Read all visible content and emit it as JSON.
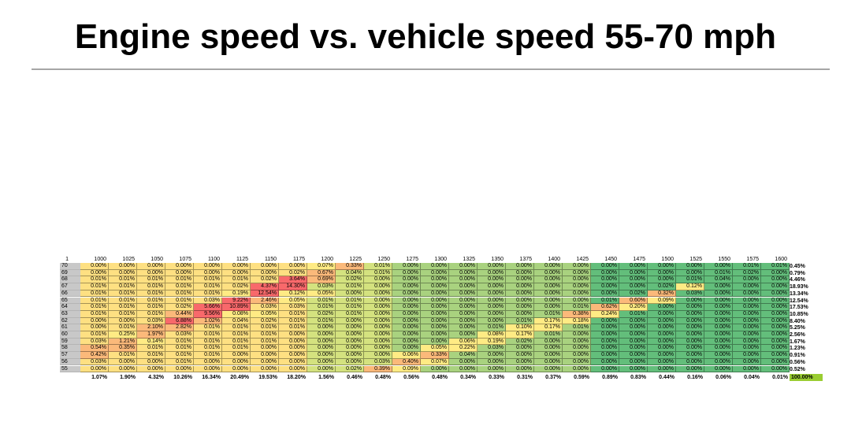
{
  "title": "Engine speed vs. vehicle speed 55-70 mph",
  "colors": {
    "hot": "#f8696b",
    "warm": "#fee082",
    "pale": "#ffeb84",
    "mid": "#d4e27f",
    "cool": "#a9d27f",
    "cold": "#63be7b",
    "header_bg": "#c8c8c8",
    "grand_total_bg": "#9acd32"
  },
  "table": {
    "corner": "1",
    "columns": [
      "1000",
      "1025",
      "1050",
      "1075",
      "1100",
      "1125",
      "1150",
      "1175",
      "1200",
      "1225",
      "1250",
      "1275",
      "1300",
      "1325",
      "1350",
      "1375",
      "1400",
      "1425",
      "1450",
      "1475",
      "1500",
      "1525",
      "1550",
      "1575",
      "1600"
    ],
    "rows": [
      {
        "speed": "70",
        "cells": [
          "0.00%",
          "0.00%",
          "0.00%",
          "0.00%",
          "0.00%",
          "0.00%",
          "0.00%",
          "0.00%",
          "0.07%",
          "0.33%",
          "0.01%",
          "0.00%",
          "0.00%",
          "0.00%",
          "0.00%",
          "0.00%",
          "0.00%",
          "0.00%",
          "0.00%",
          "0.00%",
          "0.00%",
          "0.00%",
          "0.00%",
          "0.01%",
          "0.01%"
        ],
        "total": "0.45%"
      },
      {
        "speed": "69",
        "cells": [
          "0.00%",
          "0.00%",
          "0.00%",
          "0.00%",
          "0.00%",
          "0.00%",
          "0.00%",
          "0.02%",
          "0.67%",
          "0.04%",
          "0.01%",
          "0.00%",
          "0.00%",
          "0.00%",
          "0.00%",
          "0.00%",
          "0.00%",
          "0.00%",
          "0.00%",
          "0.00%",
          "0.00%",
          "0.00%",
          "0.01%",
          "0.02%",
          "0.00%"
        ],
        "total": "0.79%"
      },
      {
        "speed": "68",
        "cells": [
          "0.01%",
          "0.01%",
          "0.01%",
          "0.01%",
          "0.01%",
          "0.01%",
          "0.02%",
          "3.64%",
          "0.69%",
          "0.02%",
          "0.00%",
          "0.00%",
          "0.00%",
          "0.00%",
          "0.00%",
          "0.00%",
          "0.00%",
          "0.00%",
          "0.00%",
          "0.00%",
          "0.00%",
          "0.01%",
          "0.04%",
          "0.00%",
          "0.00%"
        ],
        "total": "4.46%"
      },
      {
        "speed": "67",
        "cells": [
          "0.01%",
          "0.01%",
          "0.01%",
          "0.01%",
          "0.01%",
          "0.02%",
          "4.37%",
          "14.30%",
          "0.03%",
          "0.01%",
          "0.00%",
          "0.00%",
          "0.00%",
          "0.00%",
          "0.00%",
          "0.00%",
          "0.00%",
          "0.00%",
          "0.00%",
          "0.00%",
          "0.02%",
          "0.12%",
          "0.00%",
          "0.00%",
          "0.00%"
        ],
        "total": "18.93%"
      },
      {
        "speed": "66",
        "cells": [
          "0.01%",
          "0.01%",
          "0.01%",
          "0.01%",
          "0.01%",
          "0.19%",
          "12.54%",
          "0.12%",
          "0.05%",
          "0.00%",
          "0.00%",
          "0.00%",
          "0.00%",
          "0.00%",
          "0.00%",
          "0.00%",
          "0.00%",
          "0.00%",
          "0.00%",
          "0.02%",
          "0.32%",
          "0.03%",
          "0.00%",
          "0.00%",
          "0.00%"
        ],
        "total": "13.34%"
      },
      {
        "speed": "65",
        "cells": [
          "0.01%",
          "0.01%",
          "0.01%",
          "0.01%",
          "0.03%",
          "9.22%",
          "2.46%",
          "0.05%",
          "0.01%",
          "0.01%",
          "0.00%",
          "0.00%",
          "0.00%",
          "0.00%",
          "0.00%",
          "0.00%",
          "0.00%",
          "0.00%",
          "0.01%",
          "0.60%",
          "0.09%",
          "0.00%",
          "0.00%",
          "0.00%",
          "0.00%"
        ],
        "total": "12.54%"
      },
      {
        "speed": "64",
        "cells": [
          "0.01%",
          "0.01%",
          "0.01%",
          "0.02%",
          "5.66%",
          "10.89%",
          "0.03%",
          "0.03%",
          "0.01%",
          "0.01%",
          "0.00%",
          "0.00%",
          "0.00%",
          "0.00%",
          "0.00%",
          "0.00%",
          "0.00%",
          "0.01%",
          "0.62%",
          "0.20%",
          "0.00%",
          "0.00%",
          "0.00%",
          "0.00%",
          "0.00%"
        ],
        "total": "17.53%"
      },
      {
        "speed": "63",
        "cells": [
          "0.01%",
          "0.01%",
          "0.01%",
          "0.44%",
          "9.56%",
          "0.08%",
          "0.05%",
          "0.01%",
          "0.02%",
          "0.01%",
          "0.00%",
          "0.00%",
          "0.00%",
          "0.00%",
          "0.00%",
          "0.00%",
          "0.01%",
          "0.38%",
          "0.24%",
          "0.01%",
          "0.00%",
          "0.00%",
          "0.00%",
          "0.00%",
          "0.00%"
        ],
        "total": "10.85%"
      },
      {
        "speed": "62",
        "cells": [
          "0.00%",
          "0.00%",
          "0.03%",
          "6.88%",
          "1.02%",
          "0.04%",
          "0.02%",
          "0.01%",
          "0.01%",
          "0.00%",
          "0.00%",
          "0.00%",
          "0.00%",
          "0.00%",
          "0.00%",
          "0.01%",
          "0.17%",
          "0.18%",
          "0.00%",
          "0.00%",
          "0.00%",
          "0.00%",
          "0.00%",
          "0.00%",
          "0.00%"
        ],
        "total": "8.40%"
      },
      {
        "speed": "61",
        "cells": [
          "0.00%",
          "0.01%",
          "2.10%",
          "2.82%",
          "0.01%",
          "0.01%",
          "0.01%",
          "0.01%",
          "0.00%",
          "0.00%",
          "0.00%",
          "0.00%",
          "0.00%",
          "0.00%",
          "0.01%",
          "0.10%",
          "0.17%",
          "0.01%",
          "0.00%",
          "0.00%",
          "0.00%",
          "0.00%",
          "0.00%",
          "0.00%",
          "0.00%"
        ],
        "total": "5.25%"
      },
      {
        "speed": "60",
        "cells": [
          "0.01%",
          "0.25%",
          "1.97%",
          "0.03%",
          "0.01%",
          "0.01%",
          "0.01%",
          "0.00%",
          "0.00%",
          "0.00%",
          "0.00%",
          "0.00%",
          "0.00%",
          "0.00%",
          "0.08%",
          "0.17%",
          "0.01%",
          "0.00%",
          "0.00%",
          "0.00%",
          "0.00%",
          "0.00%",
          "0.00%",
          "0.00%",
          "0.00%"
        ],
        "total": "2.56%"
      },
      {
        "speed": "59",
        "cells": [
          "0.03%",
          "1.21%",
          "0.14%",
          "0.01%",
          "0.01%",
          "0.01%",
          "0.01%",
          "0.00%",
          "0.00%",
          "0.00%",
          "0.00%",
          "0.00%",
          "0.00%",
          "0.06%",
          "0.19%",
          "0.02%",
          "0.00%",
          "0.00%",
          "0.00%",
          "0.00%",
          "0.00%",
          "0.00%",
          "0.00%",
          "0.00%",
          "0.00%"
        ],
        "total": "1.67%"
      },
      {
        "speed": "58",
        "cells": [
          "0.54%",
          "0.35%",
          "0.01%",
          "0.01%",
          "0.01%",
          "0.01%",
          "0.00%",
          "0.00%",
          "0.00%",
          "0.00%",
          "0.00%",
          "0.00%",
          "0.05%",
          "0.22%",
          "0.03%",
          "0.00%",
          "0.00%",
          "0.00%",
          "0.00%",
          "0.00%",
          "0.00%",
          "0.00%",
          "0.00%",
          "0.00%",
          "0.00%"
        ],
        "total": "1.23%"
      },
      {
        "speed": "57",
        "cells": [
          "0.42%",
          "0.01%",
          "0.01%",
          "0.01%",
          "0.01%",
          "0.00%",
          "0.00%",
          "0.00%",
          "0.00%",
          "0.00%",
          "0.00%",
          "0.06%",
          "0.33%",
          "0.04%",
          "0.00%",
          "0.00%",
          "0.00%",
          "0.00%",
          "0.00%",
          "0.00%",
          "0.00%",
          "0.00%",
          "0.00%",
          "0.00%",
          "0.00%"
        ],
        "total": "0.91%"
      },
      {
        "speed": "56",
        "cells": [
          "0.03%",
          "0.00%",
          "0.00%",
          "0.01%",
          "0.00%",
          "0.00%",
          "0.00%",
          "0.00%",
          "0.00%",
          "0.00%",
          "0.03%",
          "0.40%",
          "0.07%",
          "0.00%",
          "0.00%",
          "0.00%",
          "0.00%",
          "0.00%",
          "0.00%",
          "0.00%",
          "0.00%",
          "0.00%",
          "0.00%",
          "0.00%",
          "0.00%"
        ],
        "total": "0.56%"
      },
      {
        "speed": "55",
        "cells": [
          "0.00%",
          "0.00%",
          "0.00%",
          "0.00%",
          "0.00%",
          "0.00%",
          "0.00%",
          "0.00%",
          "0.00%",
          "0.02%",
          "0.39%",
          "0.09%",
          "0.00%",
          "0.00%",
          "0.00%",
          "0.00%",
          "0.00%",
          "0.00%",
          "0.00%",
          "0.00%",
          "0.00%",
          "0.00%",
          "0.00%",
          "0.00%",
          "0.00%"
        ],
        "total": "0.52%"
      }
    ],
    "column_totals": [
      "1.07%",
      "1.90%",
      "4.32%",
      "10.26%",
      "16.34%",
      "20.49%",
      "19.53%",
      "18.20%",
      "1.56%",
      "0.46%",
      "0.48%",
      "0.56%",
      "0.48%",
      "0.34%",
      "0.33%",
      "0.31%",
      "0.37%",
      "0.59%",
      "0.89%",
      "0.83%",
      "0.44%",
      "0.16%",
      "0.06%",
      "0.04%",
      "0.01%"
    ],
    "grand_total": "100.00%"
  }
}
